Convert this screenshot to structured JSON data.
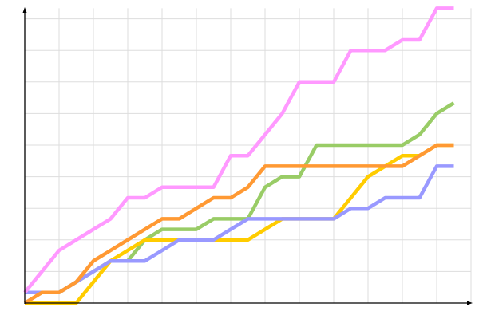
{
  "chart_data": {
    "type": "line",
    "title": "",
    "xlabel": "",
    "ylabel": "",
    "x": [
      0,
      1,
      2,
      3,
      4,
      5,
      6,
      7,
      8,
      9,
      10,
      11,
      12,
      13,
      14,
      15,
      16,
      17,
      18,
      19,
      20,
      21,
      22,
      23,
      24,
      25
    ],
    "xlim": [
      0,
      26
    ],
    "ylim": [
      0,
      28
    ],
    "grid": true,
    "x_grid_step": 2,
    "y_grid_step": 3,
    "legend": "none",
    "series": [
      {
        "color": "#99cc66",
        "values": [
          1,
          1,
          1,
          2,
          3,
          4,
          4,
          6,
          7,
          7,
          7,
          8,
          8,
          8,
          11,
          12,
          12,
          15,
          15,
          15,
          15,
          15,
          15,
          16,
          18,
          19
        ]
      },
      {
        "color": "#ffcc00",
        "values": [
          0,
          0,
          0,
          0,
          2,
          4,
          5,
          6,
          6,
          6,
          6,
          6,
          6,
          6,
          7,
          8,
          8,
          8,
          8,
          10,
          12,
          13,
          14,
          14,
          15,
          15
        ]
      },
      {
        "color": "#9999ff",
        "values": [
          1,
          1,
          1,
          2,
          3,
          4,
          4,
          4,
          5,
          6,
          6,
          6,
          7,
          8,
          8,
          8,
          8,
          8,
          8,
          9,
          9,
          10,
          10,
          10,
          13,
          13
        ]
      },
      {
        "color": "#ff9933",
        "values": [
          0,
          1,
          1,
          2,
          4,
          5,
          6,
          7,
          8,
          8,
          9,
          10,
          10,
          11,
          13,
          13,
          13,
          13,
          13,
          13,
          13,
          13,
          13,
          14,
          15,
          15
        ]
      },
      {
        "color": "#ff99ff",
        "values": [
          1,
          3,
          5,
          6,
          7,
          8,
          10,
          10,
          11,
          11,
          11,
          11,
          14,
          14,
          16,
          18,
          21,
          21,
          21,
          24,
          24,
          24,
          25,
          25,
          28,
          28
        ]
      }
    ]
  }
}
